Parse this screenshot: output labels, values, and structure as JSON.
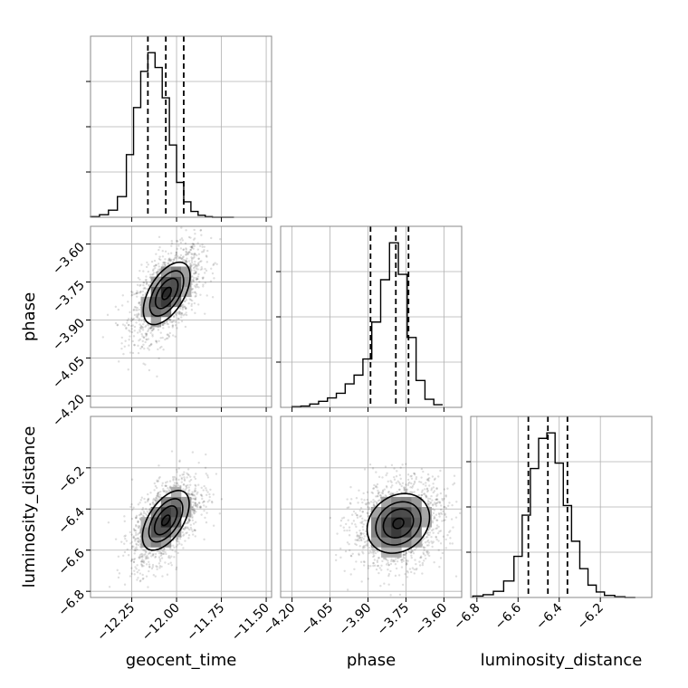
{
  "chart_data": {
    "type": "corner",
    "parameters": [
      "geocent_time",
      "phase",
      "luminosity_distance"
    ],
    "ranges": {
      "geocent_time": [
        -12.48,
        -11.47
      ],
      "phase": [
        -4.245,
        -3.53
      ],
      "luminosity_distance": [
        -6.83,
        -5.95
      ]
    },
    "ticks": {
      "geocent_time": [
        "-12.25",
        "-12.00",
        "-11.75",
        "-11.50"
      ],
      "phase": [
        "-4.20",
        "-4.05",
        "-3.90",
        "-3.75",
        "-3.60"
      ],
      "luminosity_distance": [
        "-6.8",
        "-6.6",
        "-6.4",
        "-6.2"
      ]
    },
    "grid": true,
    "histograms": [
      {
        "parameter": "geocent_time",
        "bin_edges": [
          -12.48,
          -12.43,
          -12.38,
          -12.33,
          -12.28,
          -12.24,
          -12.2,
          -12.16,
          -12.12,
          -12.08,
          -12.04,
          -12.0,
          -11.96,
          -11.92,
          -11.88,
          -11.84,
          -11.8,
          -11.76,
          -11.72,
          -11.68
        ],
        "counts": [
          1,
          4,
          11,
          32,
          97,
          170,
          226,
          255,
          232,
          185,
          112,
          54,
          24,
          9,
          3,
          1,
          0,
          0,
          0
        ],
        "quantiles": [
          -12.16,
          -12.06,
          -11.96
        ]
      },
      {
        "parameter": "phase",
        "bin_edges": [
          -4.2,
          -4.165,
          -4.13,
          -4.095,
          -4.06,
          -4.025,
          -3.99,
          -3.955,
          -3.92,
          -3.885,
          -3.85,
          -3.815,
          -3.78,
          -3.745,
          -3.71,
          -3.675,
          -3.64,
          -3.605
        ],
        "counts": [
          1,
          2,
          5,
          9,
          14,
          21,
          35,
          48,
          72,
          127,
          190,
          245,
          198,
          104,
          40,
          12,
          4
        ],
        "quantiles": [
          -3.89,
          -3.79,
          -3.74
        ]
      },
      {
        "parameter": "luminosity_distance",
        "bin_edges": [
          -6.82,
          -6.77,
          -6.72,
          -6.67,
          -6.62,
          -6.58,
          -6.54,
          -6.5,
          -6.46,
          -6.42,
          -6.38,
          -6.34,
          -6.3,
          -6.26,
          -6.22,
          -6.18,
          -6.13,
          -6.08,
          -6.03
        ],
        "counts": [
          2,
          4,
          9,
          24,
          60,
          120,
          188,
          232,
          240,
          196,
          134,
          82,
          42,
          18,
          8,
          3,
          1,
          0
        ],
        "quantiles": [
          -6.55,
          -6.455,
          -6.36
        ]
      }
    ],
    "contour_panels": [
      {
        "x": "geocent_time",
        "y": "phase",
        "center": [
          -12.055,
          -3.795
        ],
        "sigma": [
          0.09,
          0.085
        ],
        "rho": 0.55,
        "contour_levels_k": [
          1.45,
          1.05,
          0.7,
          0.28
        ]
      },
      {
        "x": "geocent_time",
        "y": "luminosity_distance",
        "center": [
          -12.06,
          -6.455
        ],
        "sigma": [
          0.09,
          0.1
        ],
        "rho": 0.55,
        "contour_levels_k": [
          1.45,
          1.05,
          0.7,
          0.25
        ]
      },
      {
        "x": "phase",
        "y": "luminosity_distance",
        "center": [
          -3.78,
          -6.47
        ],
        "sigma": [
          0.085,
          0.1
        ],
        "rho": 0.2,
        "contour_levels_k": [
          1.45,
          1.05,
          0.7,
          0.25
        ]
      }
    ]
  }
}
